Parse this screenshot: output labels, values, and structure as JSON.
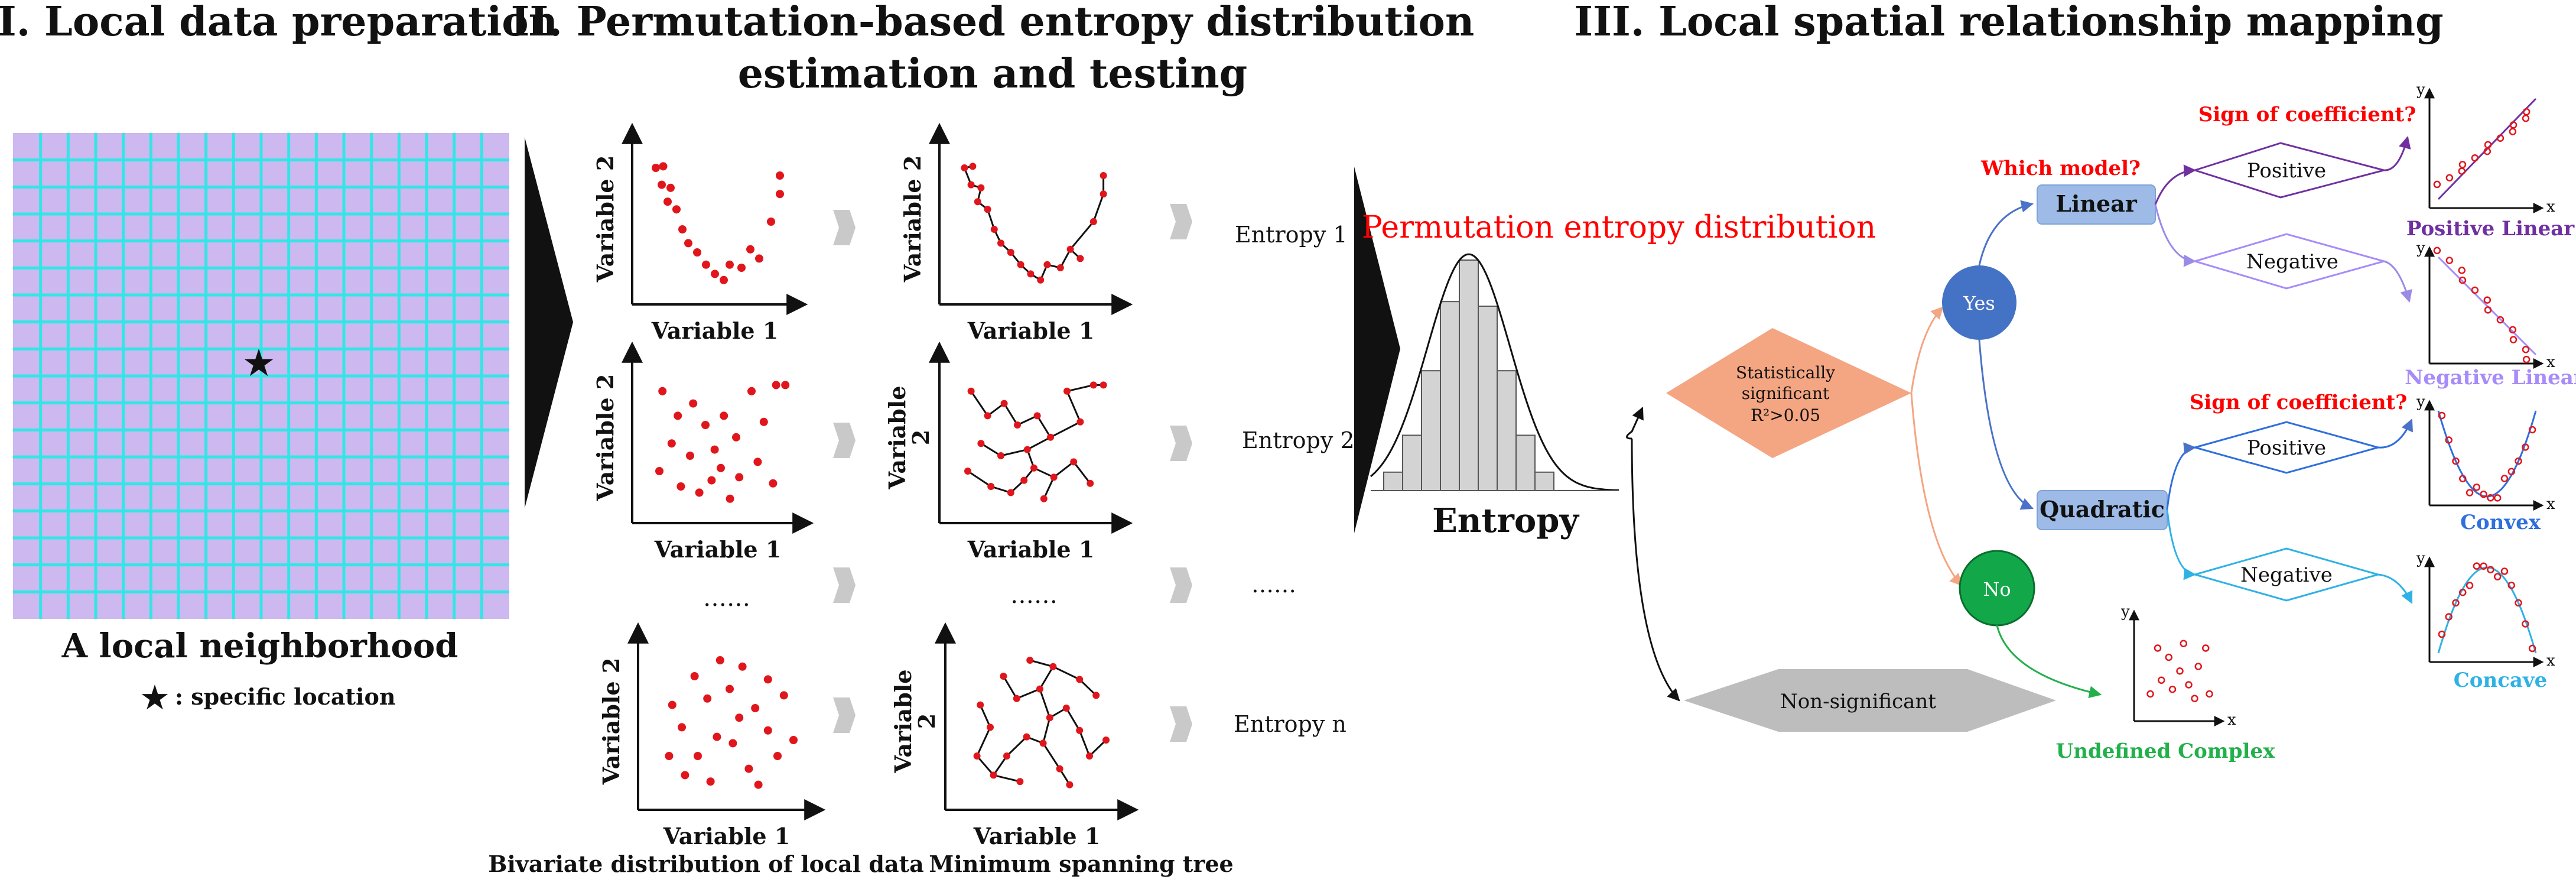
{
  "sections": {
    "one_title": "I. Local data preparation",
    "two_title_line1": "II. Permutation-based entropy distribution",
    "two_title_line2": "estimation and testing",
    "three_title": "III. Local spatial relationship mapping"
  },
  "grid": {
    "caption": "A local neighborhood",
    "legend_label": ": specific location",
    "legend_symbol": "★",
    "marker_symbol": "★",
    "fill_color": "#cdb8f0",
    "line_color": "#33e6e6"
  },
  "scatter": {
    "y_label": "Variable 2",
    "y_label_split_1": "Variable",
    "y_label_split_2": "2",
    "x_label": "Variable 1",
    "ellipsis": "……",
    "caption_bivariate": "Bivariate distribution of local data",
    "caption_mst": "Minimum spanning tree",
    "point_color": "#e0161c"
  },
  "entropies": [
    "Entropy 1",
    "Entropy 2",
    "……",
    "Entropy n"
  ],
  "entropy_dist": {
    "title": "Permutation entropy distribution",
    "x_label": "Entropy",
    "title_color": "#ff0000",
    "bar_heights": [
      0.08,
      0.24,
      0.52,
      0.82,
      1.0,
      0.8,
      0.52,
      0.24,
      0.08
    ]
  },
  "decision": {
    "diamond_line1": "Statistically",
    "diamond_line2": "significant",
    "diamond_line3": "R²>0.05",
    "yes_label": "Yes",
    "no_label": "No",
    "non_significant": "Non-significant",
    "which_model": "Which model?",
    "linear": "Linear",
    "quadratic": "Quadratic",
    "sign_question": "Sign of coefficient?",
    "positive": "Positive",
    "negative": "Negative"
  },
  "results": {
    "axis_x": "x",
    "axis_y": "y",
    "positive_linear": "Positive Linear",
    "negative_linear": "Negative Linear",
    "convex": "Convex",
    "concave": "Concave",
    "undefined_complex": "Undefined Complex"
  },
  "colors": {
    "red_label": "#ff0000",
    "positive_linear": "#7030a0",
    "negative_linear": "#a78bfa",
    "convex": "#2f6fde",
    "concave": "#2eb2e6",
    "undefined": "#22b04b",
    "yes_circle": "#4472c4",
    "no_circle": "#12a84a",
    "diamond": "#f4a582",
    "model_box": "#9dbbe6"
  }
}
